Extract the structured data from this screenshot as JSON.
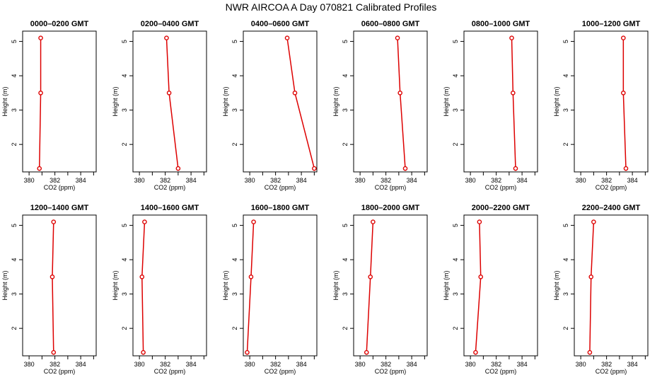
{
  "figure": {
    "title": "NWR AIRCOA A  Day 070821  Calibrated Profiles"
  },
  "chart_data": {
    "type": "line",
    "xlabel": "CO2 (ppm)",
    "ylabel": "Height (m)",
    "xlim": [
      379.5,
      385.2
    ],
    "ylim": [
      1.2,
      5.3
    ],
    "xticks": [
      380,
      382,
      384
    ],
    "xticks_minor": [
      381,
      383,
      385
    ],
    "yticks": [
      2,
      3,
      4,
      5
    ],
    "series_color": "#dd0000",
    "heights": [
      1.3,
      3.5,
      5.1
    ],
    "panels": [
      {
        "title": "0000–0200 GMT",
        "co2": [
          380.8,
          380.9,
          380.9
        ]
      },
      {
        "title": "0200–0400 GMT",
        "co2": [
          383.0,
          382.3,
          382.1
        ]
      },
      {
        "title": "0400–0600 GMT",
        "co2": [
          385.0,
          383.5,
          382.9
        ]
      },
      {
        "title": "0600–0800 GMT",
        "co2": [
          383.5,
          383.1,
          382.9
        ]
      },
      {
        "title": "0800–1000 GMT",
        "co2": [
          383.5,
          383.3,
          383.2
        ]
      },
      {
        "title": "1000–1200 GMT",
        "co2": [
          383.5,
          383.3,
          383.3
        ]
      },
      {
        "title": "1200–1400 GMT",
        "co2": [
          381.9,
          381.8,
          381.9
        ]
      },
      {
        "title": "1400–1600 GMT",
        "co2": [
          380.3,
          380.2,
          380.4
        ]
      },
      {
        "title": "1600–1800 GMT",
        "co2": [
          379.8,
          380.1,
          380.3
        ]
      },
      {
        "title": "1800–2000 GMT",
        "co2": [
          380.5,
          380.8,
          381.0
        ]
      },
      {
        "title": "2000–2200 GMT",
        "co2": [
          380.4,
          380.8,
          380.7
        ]
      },
      {
        "title": "2200–2400 GMT",
        "co2": [
          380.7,
          380.8,
          381.0
        ]
      }
    ]
  }
}
